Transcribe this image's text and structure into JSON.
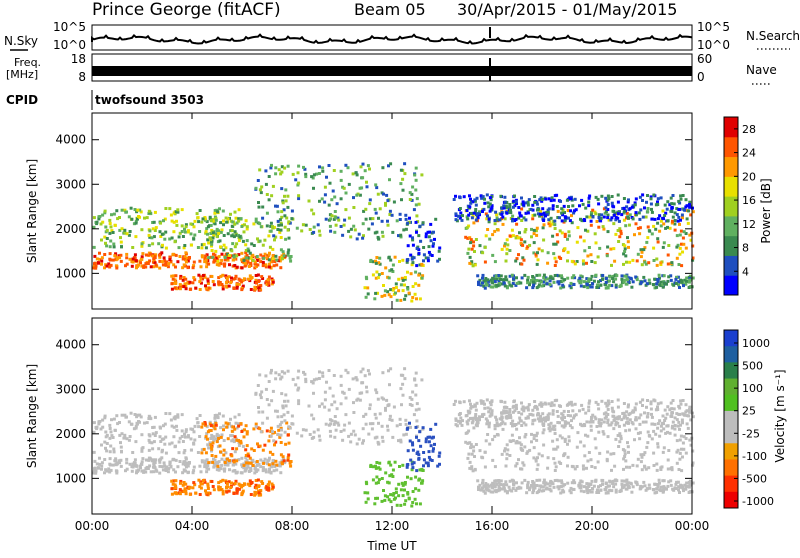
{
  "header": {
    "title": "Prince George (fitACF)",
    "beam": "Beam 05",
    "date_range": "30/Apr/2015 - 01/May/2015"
  },
  "noise_panel": {
    "left_label": "N.Sky",
    "right_label": "N.Search",
    "ticks_left": [
      "10^5",
      "10^0"
    ],
    "ticks_right": [
      "10^5",
      "10^0"
    ]
  },
  "freq_panel": {
    "left_label_line1": "Freq.",
    "left_label_line2": "[MHz]",
    "left_ticks": [
      "18",
      "8"
    ],
    "right_label": "Nave",
    "right_ticks": [
      "60",
      "0"
    ]
  },
  "cpid": {
    "label": "CPID",
    "program": "twofsound 3503"
  },
  "colors": {
    "power_scale": [
      "#0000ff",
      "#1f4fbf",
      "#3a8a50",
      "#60b060",
      "#a0d020",
      "#e8e000",
      "#ff9900",
      "#ff5500",
      "#e00000"
    ],
    "velocity_scale": [
      "#1a3fcf",
      "#1e5fa0",
      "#2a7f4a",
      "#60b030",
      "#50c020",
      "#bdbdbd",
      "#bdbdbd",
      "#f0a000",
      "#ff7000",
      "#ff3000",
      "#ee0000"
    ],
    "ground_scatter": "#bdbdbd"
  },
  "chart_data": [
    {
      "type": "heatmap",
      "name": "power",
      "ylabel": "Slant Range [km]",
      "y_ticks": [
        1000,
        2000,
        3000,
        4000
      ],
      "ylim": [
        200,
        4600
      ],
      "x_ticks": [
        "00:00",
        "04:00",
        "08:00",
        "12:00",
        "16:00",
        "20:00",
        "00:00"
      ],
      "xlim_hours": [
        0,
        24
      ],
      "colorbar": {
        "label": "Power [dB]",
        "ticks": [
          4,
          8,
          12,
          16,
          20,
          24,
          28
        ],
        "range": [
          0,
          30
        ]
      }
    },
    {
      "type": "heatmap",
      "name": "velocity",
      "ylabel": "Slant Range [km]",
      "xlabel": "Time UT",
      "y_ticks": [
        1000,
        2000,
        3000,
        4000
      ],
      "ylim": [
        200,
        4600
      ],
      "x_ticks": [
        "00:00",
        "04:00",
        "08:00",
        "12:00",
        "16:00",
        "20:00",
        "00:00"
      ],
      "xlim_hours": [
        0,
        24
      ],
      "colorbar": {
        "label": "Velocity [m s⁻¹]",
        "ticks": [
          "1000",
          "500",
          "100",
          "25",
          "-25",
          "-100",
          "-500",
          "-1000"
        ]
      }
    }
  ]
}
